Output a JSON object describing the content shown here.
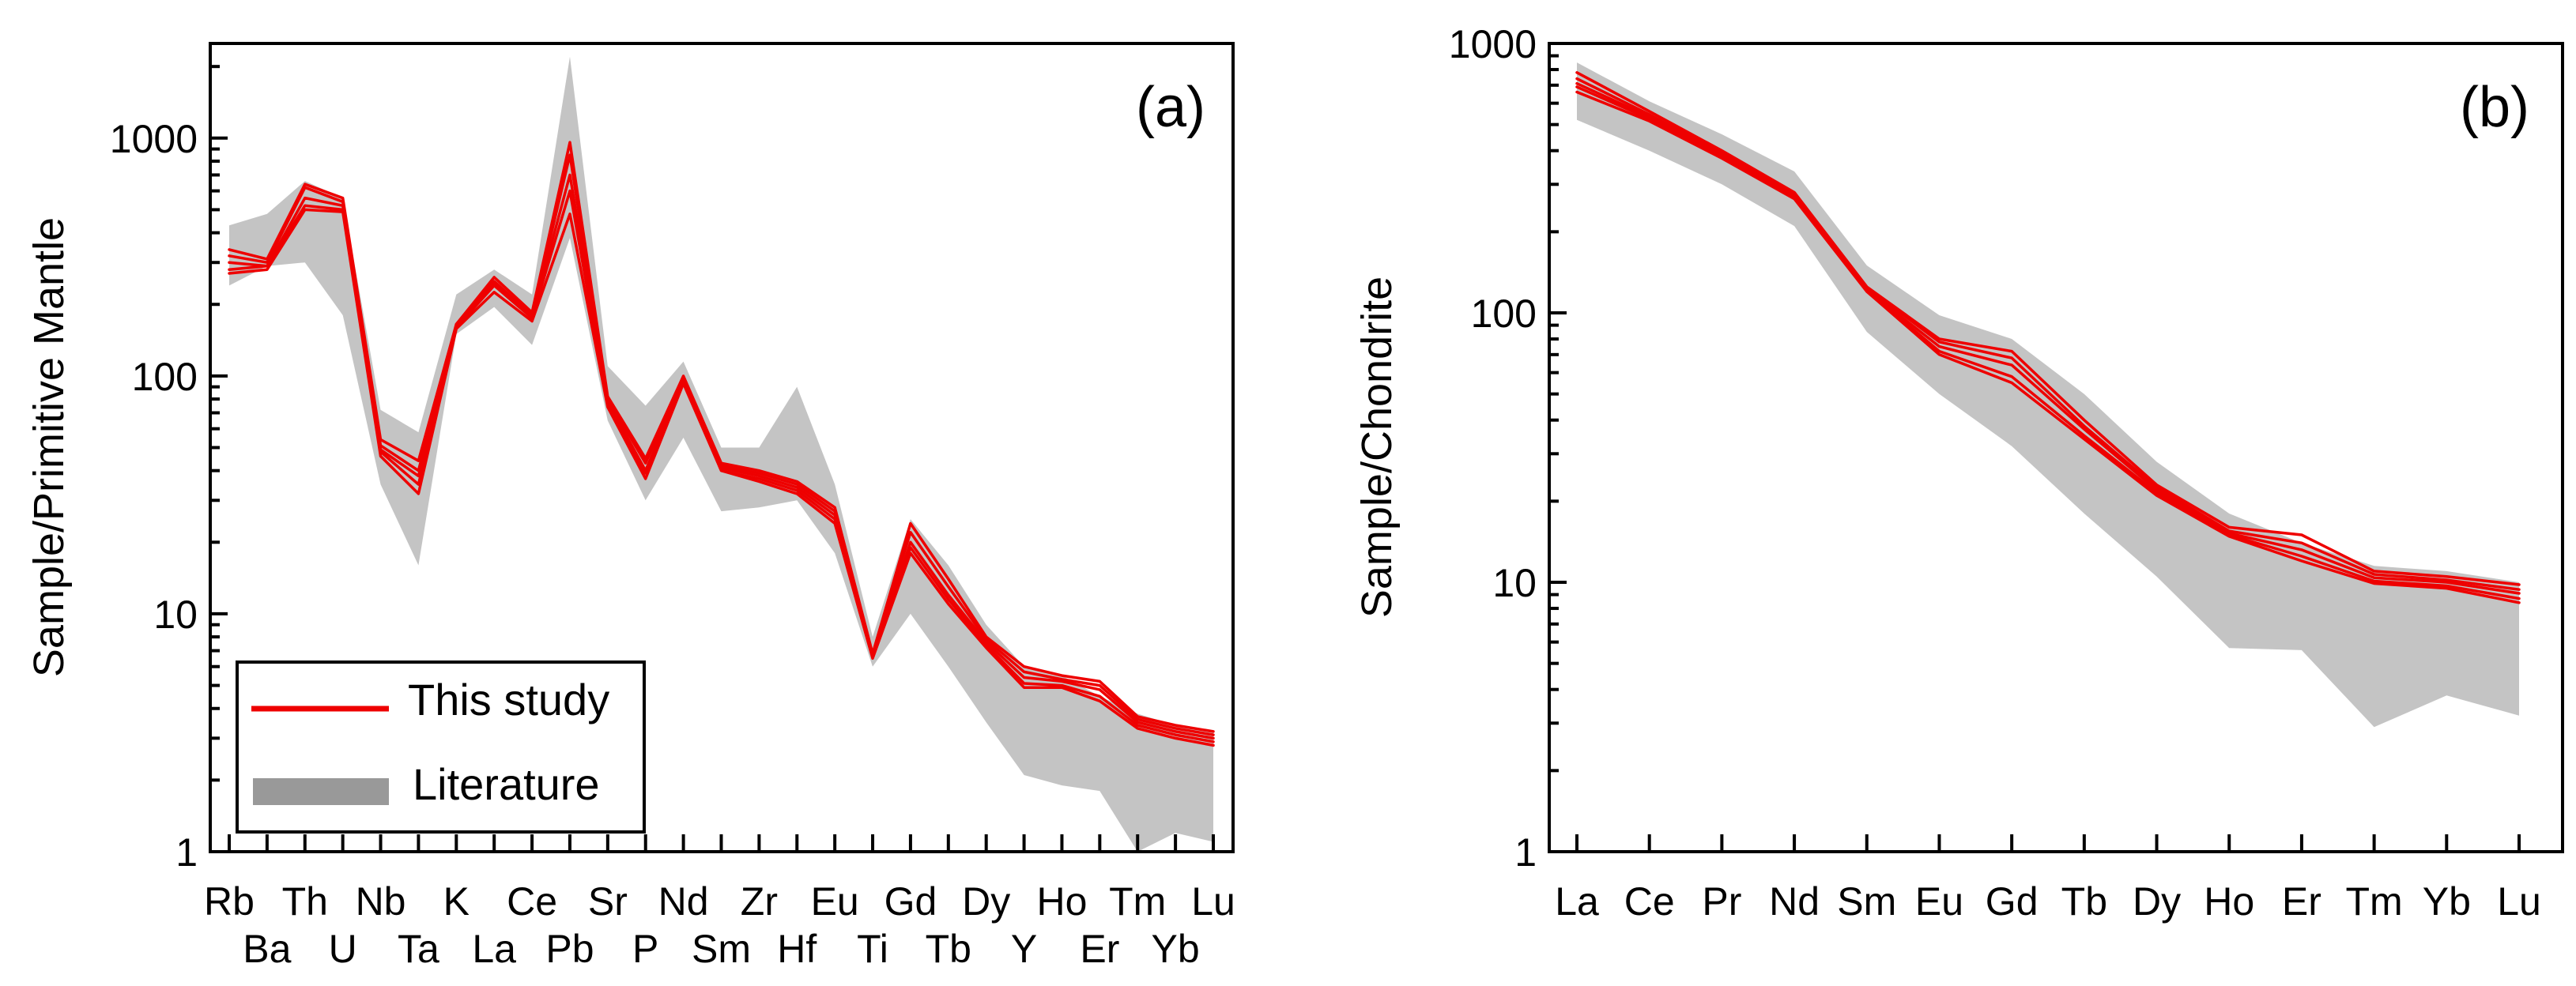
{
  "colors": {
    "this_study": "#ee0000",
    "literature": "#c4c4c4",
    "legend_patch": "#999999"
  },
  "legend": {
    "this_study": "This study",
    "literature": "Literature"
  },
  "chart_data": [
    {
      "type": "line",
      "panel_label": "(a)",
      "ylabel": "Sample/Primitive Mantle",
      "yscale": "log",
      "ylim": [
        1,
        2500
      ],
      "ytick_labels": [
        "1",
        "10",
        "100",
        "1000"
      ],
      "yticks": [
        1,
        10,
        100,
        1000
      ],
      "categories": [
        "Rb",
        "Ba",
        "Th",
        "U",
        "Nb",
        "Ta",
        "K",
        "La",
        "Ce",
        "Pb",
        "Sr",
        "P",
        "Nd",
        "Sm",
        "Zr",
        "Hf",
        "Eu",
        "Ti",
        "Gd",
        "Tb",
        "Dy",
        "Y",
        "Ho",
        "Er",
        "Tm",
        "Yb",
        "Lu"
      ],
      "band": {
        "name": "Literature",
        "upper": [
          430,
          480,
          660,
          560,
          72,
          58,
          220,
          280,
          220,
          2200,
          110,
          75,
          115,
          50,
          50,
          90,
          35,
          8,
          25,
          16,
          9,
          6,
          5.5,
          4.5,
          3.8,
          3.4,
          3.2
        ],
        "lower": [
          240,
          290,
          300,
          180,
          35,
          16,
          150,
          195,
          135,
          380,
          65,
          30,
          55,
          27,
          28,
          30,
          18,
          6,
          10,
          6,
          3.5,
          2.1,
          1.9,
          1.8,
          1.0,
          1.2,
          1.1
        ]
      },
      "series": [
        {
          "name": "This study",
          "values": [
            340,
            310,
            640,
            560,
            54,
            44,
            165,
            260,
            185,
            960,
            82,
            45,
            100,
            43,
            40,
            36,
            28,
            6.8,
            24,
            14,
            8,
            6,
            5.5,
            5.2,
            3.7,
            3.4,
            3.2
          ]
        },
        {
          "name": "This study",
          "values": [
            320,
            300,
            620,
            540,
            51,
            40,
            165,
            250,
            180,
            850,
            80,
            43,
            98,
            42,
            39,
            35,
            27,
            6.7,
            22,
            13,
            7.8,
            5.7,
            5.3,
            5.0,
            3.6,
            3.3,
            3.1
          ]
        },
        {
          "name": "This study",
          "values": [
            300,
            290,
            560,
            520,
            49,
            38,
            160,
            245,
            178,
            700,
            78,
            40,
            96,
            41,
            38,
            34,
            26,
            6.6,
            20,
            12,
            7.6,
            5.4,
            5.2,
            4.8,
            3.5,
            3.2,
            3.0
          ]
        },
        {
          "name": "This study",
          "values": [
            280,
            290,
            520,
            500,
            48,
            35,
            160,
            240,
            175,
            600,
            76,
            39,
            95,
            40,
            37,
            33,
            25,
            6.6,
            19,
            11.5,
            7.4,
            5.1,
            5.0,
            4.5,
            3.4,
            3.1,
            2.9
          ]
        },
        {
          "name": "This study",
          "values": [
            270,
            280,
            500,
            490,
            46,
            32,
            158,
            225,
            170,
            480,
            74,
            37,
            93,
            40,
            36,
            32,
            24,
            6.5,
            18,
            11,
            7.2,
            4.9,
            4.9,
            4.3,
            3.3,
            3.0,
            2.8
          ]
        }
      ],
      "legend_position": "bottom-left"
    },
    {
      "type": "line",
      "panel_label": "(b)",
      "ylabel": "Sample/Chondrite",
      "yscale": "log",
      "ylim": [
        1,
        1000
      ],
      "ytick_labels": [
        "1",
        "10",
        "100",
        "1000"
      ],
      "yticks": [
        1,
        10,
        100,
        1000
      ],
      "categories": [
        "La",
        "Ce",
        "Pr",
        "Nd",
        "Sm",
        "Eu",
        "Gd",
        "Tb",
        "Dy",
        "Ho",
        "Er",
        "Tm",
        "Yb",
        "Lu"
      ],
      "band": {
        "name": "Literature",
        "upper": [
          850,
          610,
          460,
          335,
          150,
          98,
          80,
          50,
          28,
          18,
          14,
          11.5,
          11,
          10
        ],
        "lower": [
          520,
          400,
          300,
          210,
          85,
          50,
          32,
          18,
          10.5,
          5.7,
          5.6,
          2.9,
          3.8,
          3.2
        ]
      },
      "series": [
        {
          "name": "This study",
          "values": [
            780,
            560,
            400,
            280,
            125,
            80,
            72,
            40,
            23,
            16,
            15,
            11,
            10.5,
            9.8
          ]
        },
        {
          "name": "This study",
          "values": [
            740,
            545,
            392,
            276,
            124,
            78,
            68,
            38,
            22.5,
            15.5,
            14,
            10.7,
            10.2,
            9.4
          ]
        },
        {
          "name": "This study",
          "values": [
            710,
            535,
            386,
            272,
            122,
            75,
            64,
            37,
            22,
            15.2,
            13.2,
            10.4,
            10,
            9.1
          ]
        },
        {
          "name": "This study",
          "values": [
            690,
            525,
            380,
            268,
            121,
            72,
            58,
            35,
            21.5,
            15,
            12.5,
            10.1,
            9.7,
            8.7
          ]
        },
        {
          "name": "This study",
          "values": [
            660,
            515,
            375,
            265,
            120,
            70,
            55,
            34,
            21,
            14.8,
            12,
            9.9,
            9.5,
            8.4
          ]
        }
      ],
      "legend_position": "none"
    }
  ]
}
